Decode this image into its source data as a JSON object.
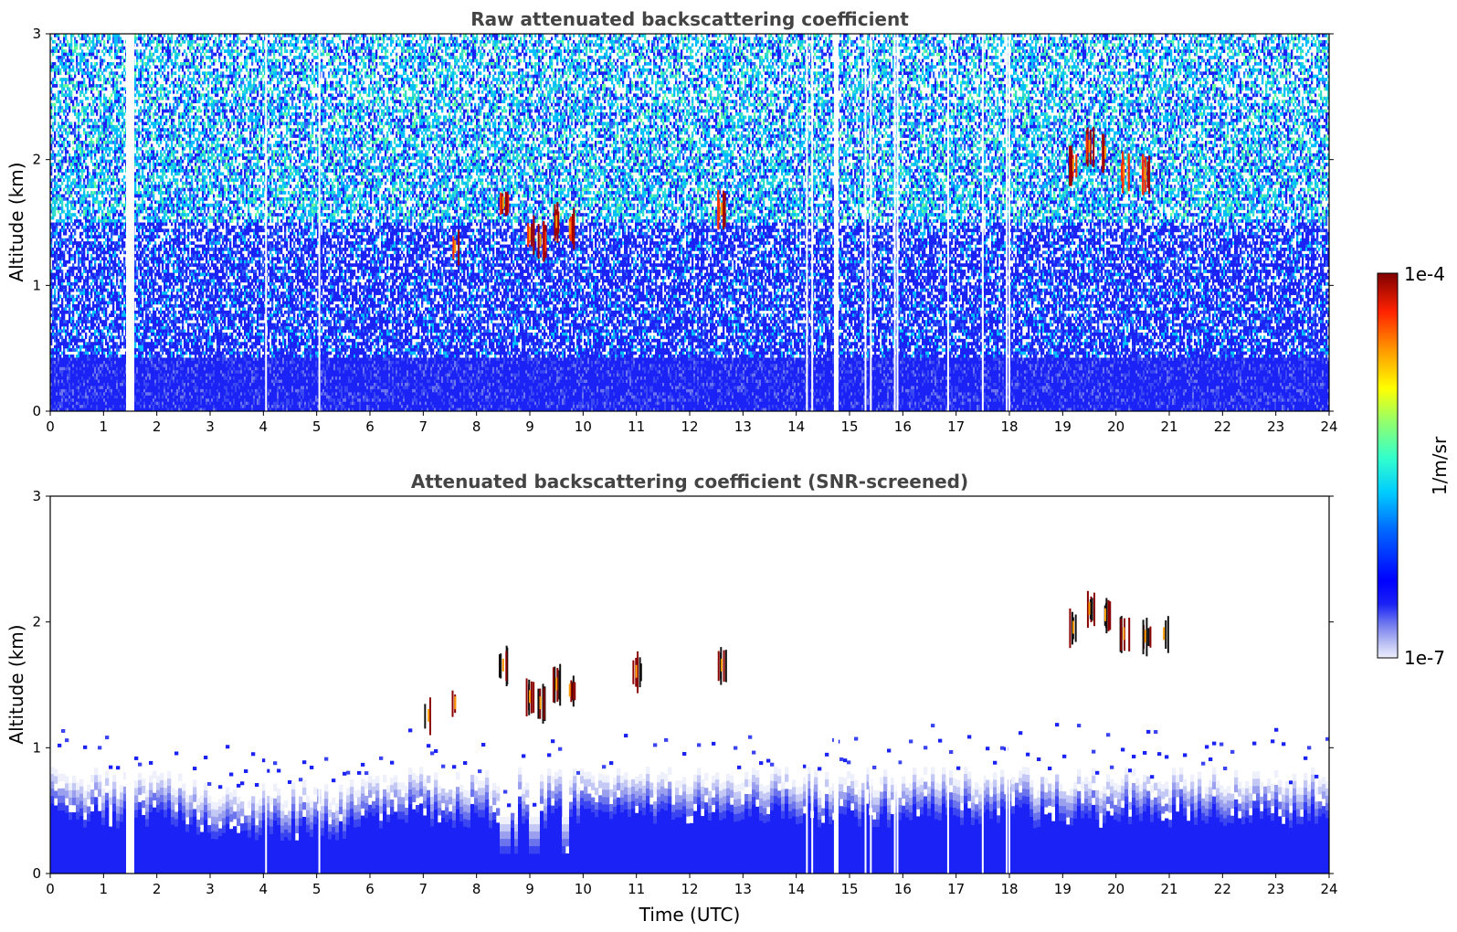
{
  "chart_data": [
    {
      "type": "heatmap",
      "title": "Raw attenuated backscattering coefficient",
      "xlabel": "",
      "ylabel": "Altitude (km)",
      "xlim": [
        0,
        24
      ],
      "ylim": [
        0,
        3
      ],
      "xticks": [
        "0",
        "1",
        "2",
        "3",
        "4",
        "5",
        "6",
        "7",
        "8",
        "9",
        "10",
        "11",
        "12",
        "13",
        "14",
        "15",
        "16",
        "17",
        "18",
        "19",
        "20",
        "21",
        "22",
        "23",
        "24"
      ],
      "yticks": [
        "0",
        "1",
        "2",
        "3"
      ],
      "dense_layer_top_km": 0.45,
      "data_gaps_utc": [
        1.5,
        4.05,
        5.05,
        14.2,
        14.3,
        14.75,
        15.3,
        15.4,
        15.85,
        15.9,
        16.85,
        17.5,
        17.95,
        18.0
      ],
      "features": [
        {
          "x_utc": 8.5,
          "alt_km": 1.65,
          "intensity": "high"
        },
        {
          "x_utc": 9.0,
          "alt_km": 1.4,
          "intensity": "high"
        },
        {
          "x_utc": 9.2,
          "alt_km": 1.35,
          "intensity": "high"
        },
        {
          "x_utc": 9.5,
          "alt_km": 1.5,
          "intensity": "high"
        },
        {
          "x_utc": 9.75,
          "alt_km": 1.45,
          "intensity": "high"
        },
        {
          "x_utc": 7.6,
          "alt_km": 1.3,
          "intensity": "medium"
        },
        {
          "x_utc": 12.6,
          "alt_km": 1.6,
          "intensity": "high"
        },
        {
          "x_utc": 19.2,
          "alt_km": 1.95,
          "intensity": "high"
        },
        {
          "x_utc": 19.5,
          "alt_km": 2.1,
          "intensity": "high"
        },
        {
          "x_utc": 19.8,
          "alt_km": 2.05,
          "intensity": "high"
        },
        {
          "x_utc": 20.15,
          "alt_km": 1.9,
          "intensity": "high"
        },
        {
          "x_utc": 20.55,
          "alt_km": 1.88,
          "intensity": "high"
        }
      ]
    },
    {
      "type": "heatmap",
      "title": "Attenuated backscattering coefficient (SNR-screened)",
      "xlabel": "Time (UTC)",
      "ylabel": "Altitude (km)",
      "xlim": [
        0,
        24
      ],
      "ylim": [
        0,
        3
      ],
      "xticks": [
        "0",
        "1",
        "2",
        "3",
        "4",
        "5",
        "6",
        "7",
        "8",
        "9",
        "10",
        "11",
        "12",
        "13",
        "14",
        "15",
        "16",
        "17",
        "18",
        "19",
        "20",
        "21",
        "22",
        "23",
        "24"
      ],
      "yticks": [
        "0",
        "1",
        "2",
        "3"
      ],
      "layer_top_km": 0.75,
      "data_gaps_utc": [
        1.5,
        4.05,
        5.05,
        14.2,
        14.3,
        14.75,
        15.3,
        15.4,
        15.85,
        15.9,
        16.85,
        17.5,
        17.95,
        18.0
      ],
      "features": [
        {
          "x_utc": 8.5,
          "alt_km": 1.65,
          "intensity": "high"
        },
        {
          "x_utc": 9.0,
          "alt_km": 1.4,
          "intensity": "high"
        },
        {
          "x_utc": 9.2,
          "alt_km": 1.35,
          "intensity": "high"
        },
        {
          "x_utc": 9.5,
          "alt_km": 1.5,
          "intensity": "high"
        },
        {
          "x_utc": 9.75,
          "alt_km": 1.45,
          "intensity": "high"
        },
        {
          "x_utc": 7.6,
          "alt_km": 1.35,
          "intensity": "medium"
        },
        {
          "x_utc": 7.1,
          "alt_km": 1.25,
          "intensity": "medium"
        },
        {
          "x_utc": 11.0,
          "alt_km": 1.6,
          "intensity": "high"
        },
        {
          "x_utc": 12.6,
          "alt_km": 1.65,
          "intensity": "high"
        },
        {
          "x_utc": 19.2,
          "alt_km": 1.95,
          "intensity": "high"
        },
        {
          "x_utc": 19.5,
          "alt_km": 2.1,
          "intensity": "high"
        },
        {
          "x_utc": 19.8,
          "alt_km": 2.05,
          "intensity": "high"
        },
        {
          "x_utc": 20.15,
          "alt_km": 1.9,
          "intensity": "high"
        },
        {
          "x_utc": 20.55,
          "alt_km": 1.88,
          "intensity": "high"
        },
        {
          "x_utc": 20.9,
          "alt_km": 1.9,
          "intensity": "medium"
        }
      ]
    }
  ],
  "colorbar": {
    "label": "1/m/sr",
    "min_label": "1e-7",
    "max_label": "1e-4",
    "colormap": "jet",
    "low_colors": [
      "#e8e8fa",
      "#c4c8f4",
      "#9aa0ee",
      "#6b74ec",
      "#3a44f0",
      "#1020f8"
    ]
  }
}
